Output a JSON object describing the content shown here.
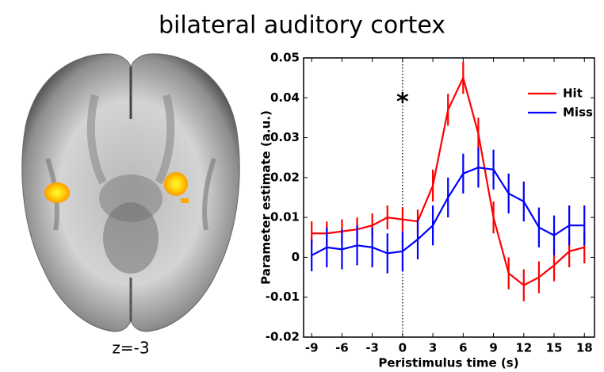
{
  "chart_data": {
    "type": "line",
    "title": "bilateral auditory cortex",
    "image_caption": "z=-3",
    "annotation": "*",
    "xlabel": "Peristimulus time (s)",
    "ylabel": "Parameter estimate (a.u.)",
    "x": [
      -9,
      -7.5,
      -6,
      -4.5,
      -3,
      -1.5,
      0,
      1.5,
      3,
      4.5,
      6,
      7.5,
      9,
      10.5,
      12,
      13.5,
      15,
      16.5,
      18
    ],
    "series": [
      {
        "name": "Hit",
        "color": "#ff0000",
        "values": [
          0.006,
          0.006,
          0.0065,
          0.007,
          0.008,
          0.01,
          0.0095,
          0.009,
          0.018,
          0.037,
          0.045,
          0.031,
          0.01,
          -0.004,
          -0.007,
          -0.005,
          -0.002,
          0.0015,
          0.0025
        ],
        "errors": [
          0.003,
          0.003,
          0.003,
          0.003,
          0.003,
          0.003,
          0.003,
          0.003,
          0.004,
          0.004,
          0.004,
          0.004,
          0.004,
          0.004,
          0.004,
          0.004,
          0.004,
          0.004,
          0.004
        ]
      },
      {
        "name": "Miss",
        "color": "#0000ff",
        "values": [
          0.0005,
          0.0025,
          0.002,
          0.003,
          0.0025,
          0.001,
          0.0015,
          0.0045,
          0.008,
          0.015,
          0.021,
          0.0225,
          0.022,
          0.016,
          0.014,
          0.0075,
          0.0055,
          0.008,
          0.008
        ],
        "errors": [
          0.004,
          0.005,
          0.005,
          0.005,
          0.005,
          0.005,
          0.005,
          0.005,
          0.005,
          0.005,
          0.005,
          0.005,
          0.005,
          0.005,
          0.005,
          0.005,
          0.005,
          0.005,
          0.005
        ]
      }
    ],
    "xlim": [
      -9.8,
      19
    ],
    "ylim": [
      -0.02,
      0.05
    ],
    "xticks": [
      -9,
      -6,
      -3,
      0,
      3,
      6,
      9,
      12,
      15,
      18
    ],
    "yticks": [
      -0.02,
      -0.01,
      0,
      0.01,
      0.02,
      0.03,
      0.04,
      0.05
    ],
    "vline": 0,
    "legend": "upper right"
  }
}
